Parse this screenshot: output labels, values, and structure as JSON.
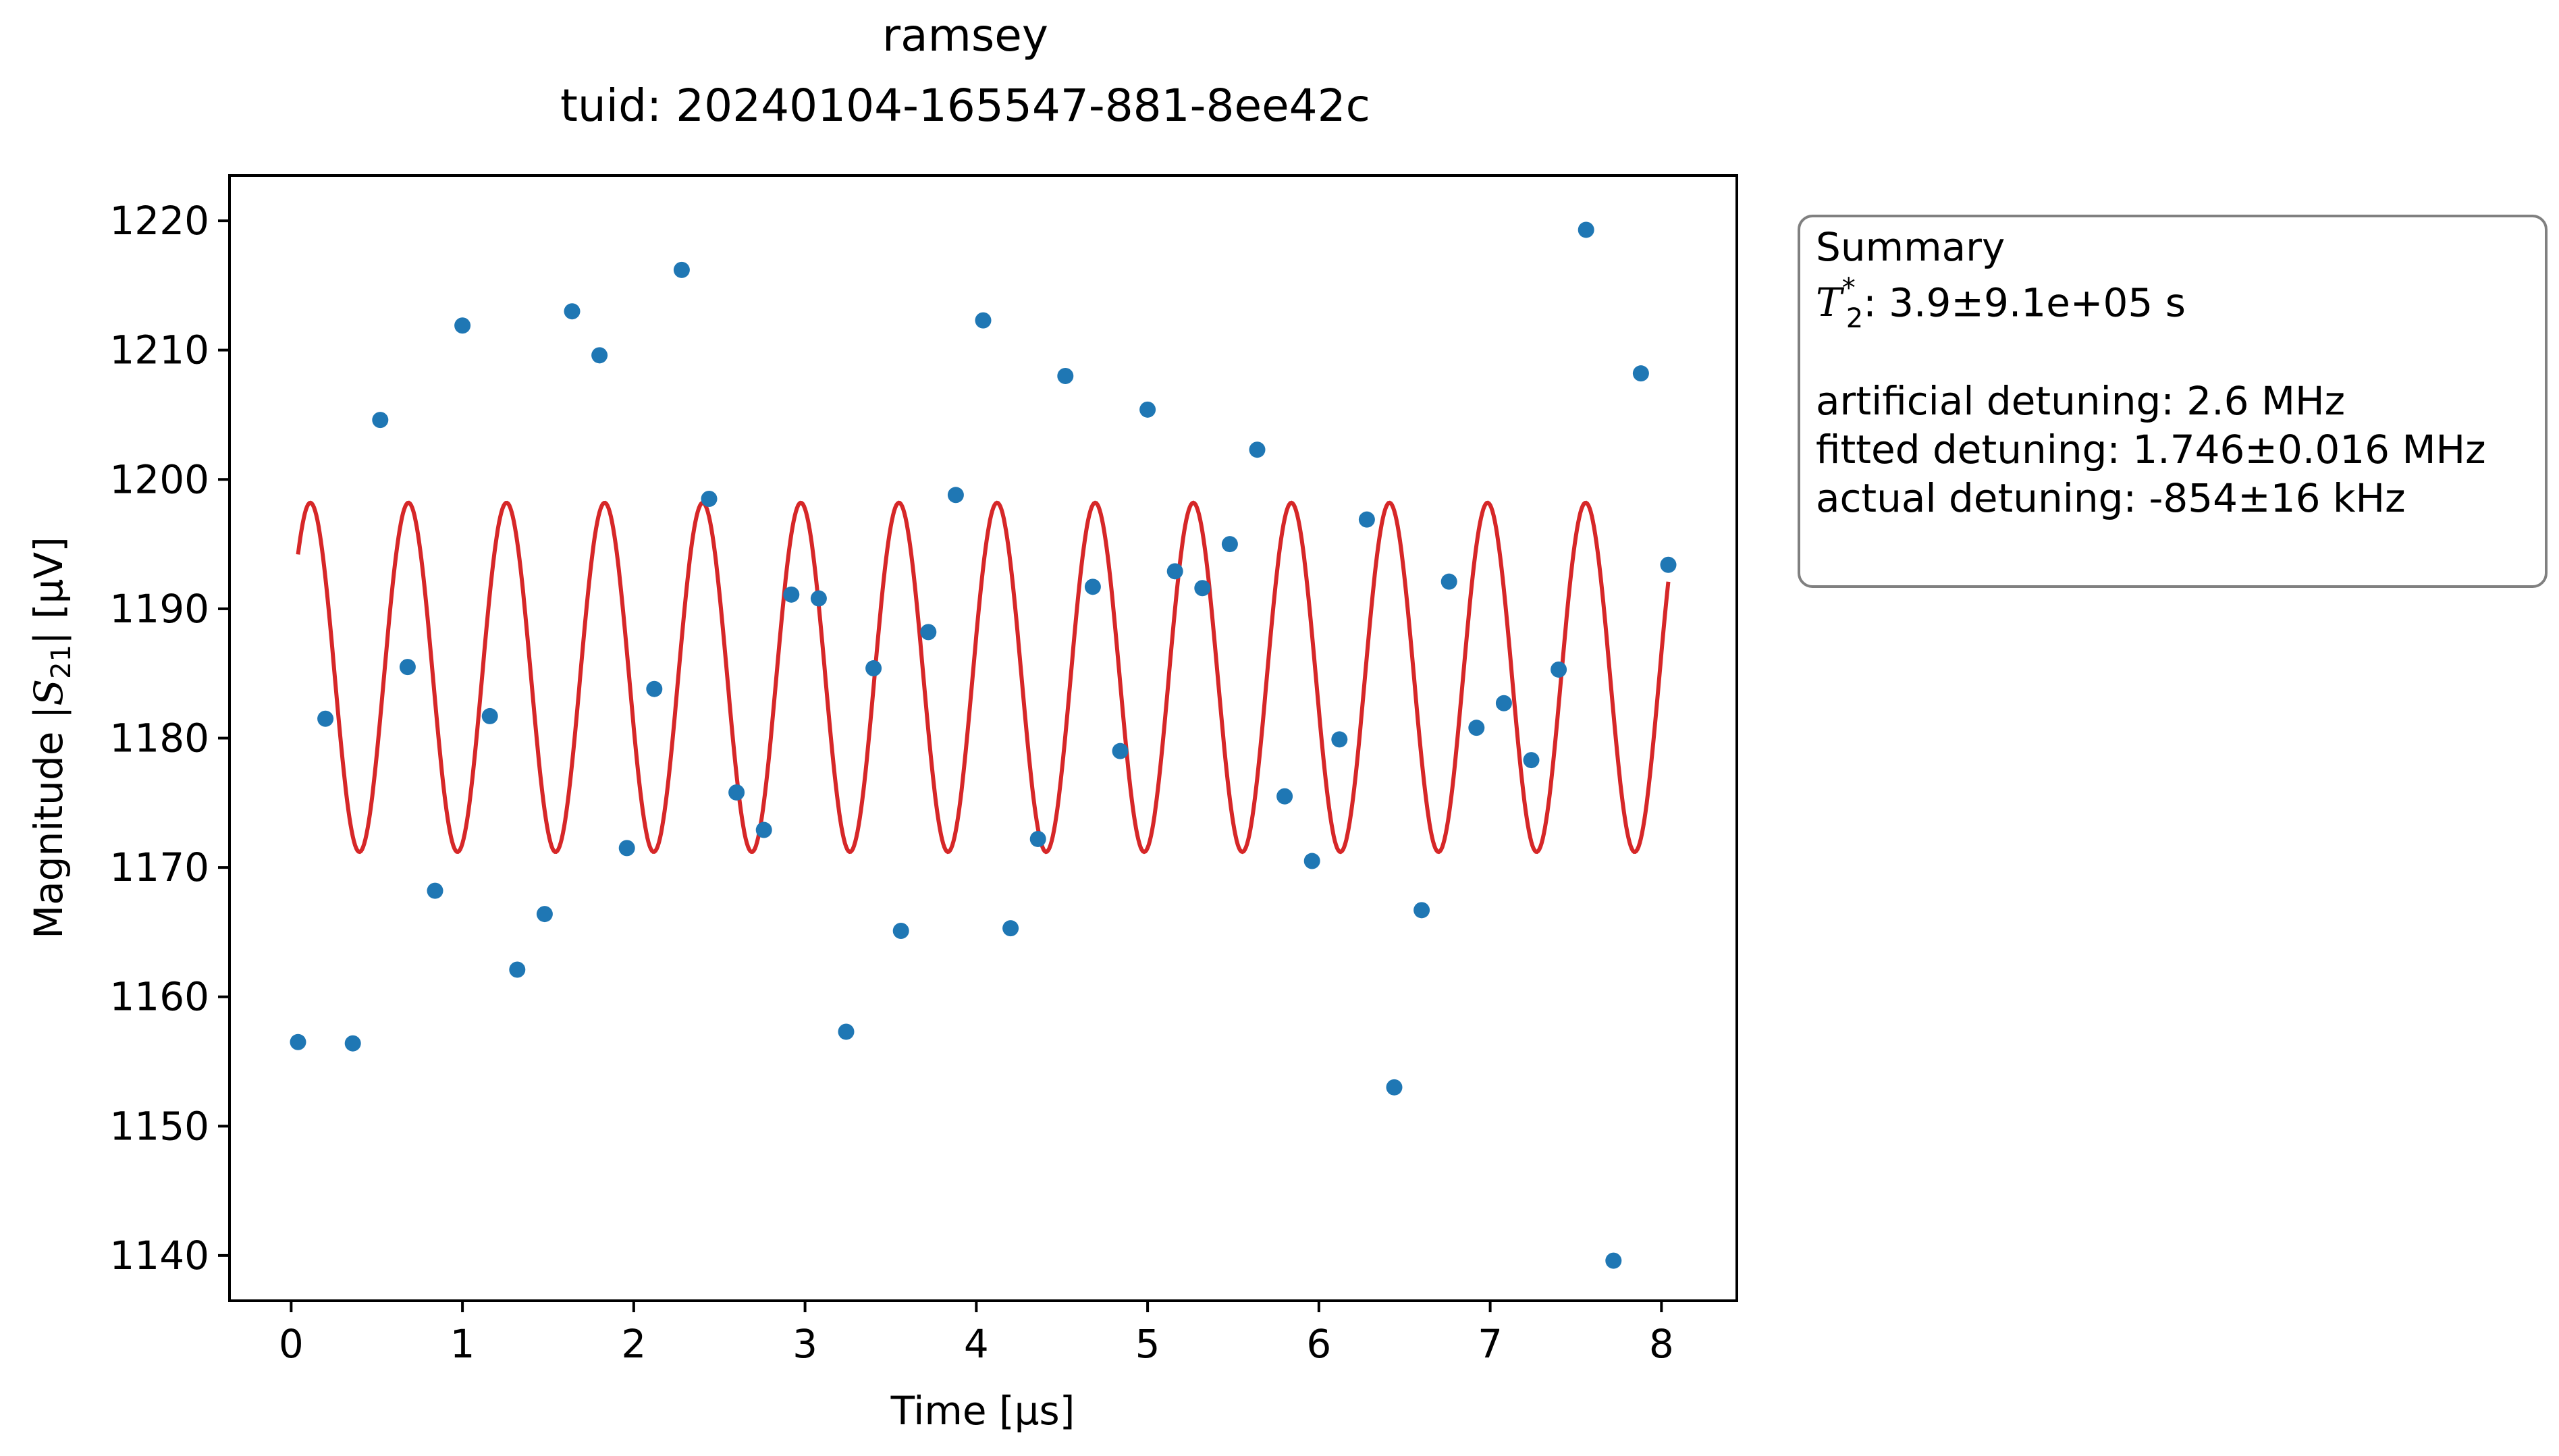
{
  "title": {
    "line1": "ramsey",
    "line2": "tuid: 20240104-165547-881-8ee42c"
  },
  "summary": {
    "heading": "Summary",
    "t2_symbol": "T",
    "t2_sub": "2",
    "t2_sup": "*",
    "t2_value": ": 3.9±9.1e+05 s",
    "artificial_detuning": "artificial detuning: 2.6 MHz",
    "fitted_detuning": "fitted detuning: 1.746±0.016 MHz",
    "actual_detuning": "actual detuning: -854±16 kHz"
  },
  "colors": {
    "data": "#1f77b4",
    "fit": "#d62728",
    "summary_border": "#808080"
  },
  "chart_data": {
    "type": "scatter",
    "xlabel": "Time [μs]",
    "ylabel_prefix": "Magnitude |",
    "ylabel_symbol": "S",
    "ylabel_sub": "21",
    "ylabel_suffix": "| [μV]",
    "xlim": [
      -0.36,
      8.44
    ],
    "ylim": [
      1136.5,
      1223.5
    ],
    "xticks": [
      0,
      1,
      2,
      3,
      4,
      5,
      6,
      7,
      8
    ],
    "yticks": [
      1140,
      1150,
      1160,
      1170,
      1180,
      1190,
      1200,
      1210,
      1220
    ],
    "grid": false,
    "series": [
      {
        "kind": "points",
        "x": [
          0.04,
          0.2,
          0.36,
          0.52,
          0.68,
          0.84,
          1.0,
          1.16,
          1.32,
          1.48,
          1.64,
          1.8,
          1.96,
          2.12,
          2.28,
          2.44,
          2.6,
          2.76,
          2.92,
          3.08,
          3.24,
          3.4,
          3.56,
          3.72,
          3.88,
          4.04,
          4.2,
          4.36,
          4.52,
          4.68,
          4.84,
          5.0,
          5.16,
          5.32,
          5.48,
          5.64,
          5.8,
          5.96,
          6.12,
          6.28,
          6.44,
          6.6,
          6.76,
          6.92,
          7.08,
          7.24,
          7.4,
          7.56,
          7.72,
          7.88,
          8.04
        ],
        "y": [
          1156.5,
          1181.5,
          1156.4,
          1204.6,
          1185.5,
          1168.2,
          1211.9,
          1181.7,
          1162.1,
          1166.4,
          1213.0,
          1209.6,
          1171.5,
          1183.8,
          1216.2,
          1198.5,
          1175.8,
          1172.9,
          1191.1,
          1190.8,
          1157.3,
          1185.4,
          1165.1,
          1188.2,
          1198.8,
          1212.3,
          1165.3,
          1172.2,
          1208.0,
          1191.7,
          1179.0,
          1205.4,
          1192.9,
          1191.6,
          1195.0,
          1202.3,
          1175.5,
          1170.5,
          1179.9,
          1196.9,
          1153.0,
          1166.7,
          1192.1,
          1180.8,
          1182.7,
          1178.3,
          1185.3,
          1219.3,
          1139.6,
          1208.2,
          1193.4
        ]
      },
      {
        "kind": "fit",
        "x_start": 0.04,
        "x_end": 8.04,
        "offset": 1184.7,
        "amplitude": 13.5,
        "frequency_mhz": 1.746,
        "y_at_start": 1194.2
      }
    ]
  }
}
